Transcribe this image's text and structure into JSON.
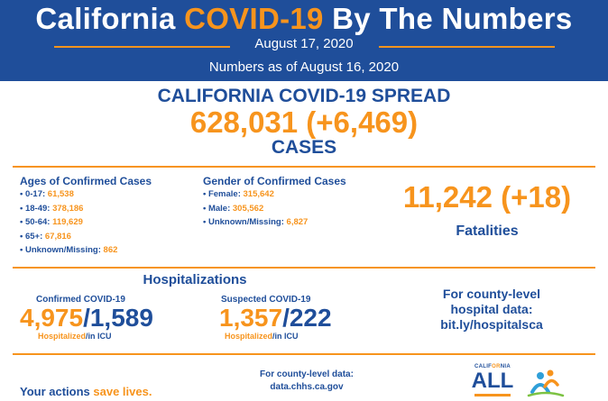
{
  "header": {
    "title_prefix": "California",
    "title_accent": "COVID-19",
    "title_suffix": "By The Numbers",
    "date": "August 17, 2020",
    "as_of": "Numbers as of August 16, 2020"
  },
  "spread": {
    "title": "CALIFORNIA COVID-19 SPREAD",
    "cases_value": "628,031 (+6,469)",
    "cases_label": "CASES"
  },
  "ages": {
    "title": "Ages of Confirmed Cases",
    "items": [
      {
        "label": "• 0-17: ",
        "value": "61,538"
      },
      {
        "label": "• 18-49: ",
        "value": "378,186"
      },
      {
        "label": "• 50-64: ",
        "value": "119,629"
      },
      {
        "label": "• 65+: ",
        "value": "67,816"
      },
      {
        "label": "• Unknown/Missing: ",
        "value": "862"
      }
    ]
  },
  "gender": {
    "title": "Gender of Confirmed Cases",
    "items": [
      {
        "label": "• Female: ",
        "value": "315,642"
      },
      {
        "label": "• Male: ",
        "value": "305,562"
      },
      {
        "label": "• Unknown/Missing: ",
        "value": "6,827"
      }
    ]
  },
  "fatalities": {
    "value": "11,242 (+18)",
    "label": "Fatalities"
  },
  "hospitalizations": {
    "title": "Hospitalizations",
    "confirmed": {
      "label": "Confirmed COVID-19",
      "hospitalized": "4,975",
      "icu": "1,589",
      "note_hosp": "Hospitalized",
      "note_icu": "/in ICU"
    },
    "suspected": {
      "label": "Suspected COVID-19",
      "hospitalized": "1,357",
      "icu": "222",
      "note_hosp": "Hospitalized",
      "note_icu": "/in ICU"
    },
    "slash": "/"
  },
  "county_hospital": {
    "line1": "For county-level",
    "line2": "hospital data:",
    "line3": "bit.ly/hospitalsca"
  },
  "footer": {
    "county_data_label": "For county-level data:",
    "county_data_url": "data.chhs.ca.gov",
    "actions_prefix": "Your actions ",
    "actions_accent": "save lives."
  },
  "logo": {
    "top_prefix": "CALIF",
    "top_accent": "OR",
    "top_suffix": "NIA",
    "word": "ALL"
  },
  "colors": {
    "blue": "#1f4e9a",
    "orange": "#f7941d"
  }
}
